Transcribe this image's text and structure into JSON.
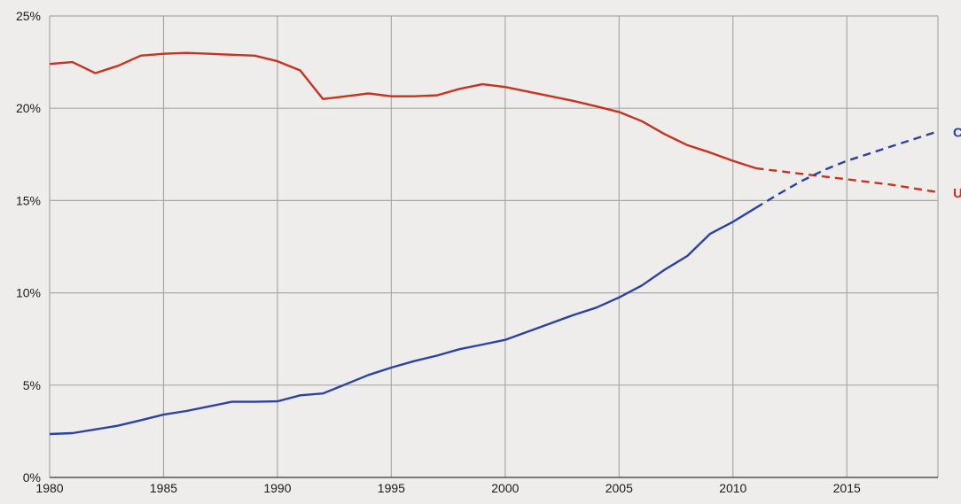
{
  "chart_data": {
    "type": "line",
    "title": "",
    "xlabel": "",
    "ylabel": "",
    "xlim": [
      1980,
      2019
    ],
    "ylim": [
      0,
      25
    ],
    "grid": true,
    "x_ticks": [
      1980,
      1985,
      1990,
      1995,
      2000,
      2005,
      2010,
      2015
    ],
    "y_ticks": [
      "0%",
      "5%",
      "10%",
      "15%",
      "20%",
      "25%"
    ],
    "series": [
      {
        "name": "U",
        "color": "#c8321e",
        "actual": [
          [
            1980,
            22.4
          ],
          [
            1981,
            22.5
          ],
          [
            1982,
            21.9
          ],
          [
            1983,
            22.3
          ],
          [
            1984,
            22.85
          ],
          [
            1985,
            22.95
          ],
          [
            1986,
            23.0
          ],
          [
            1987,
            22.95
          ],
          [
            1988,
            22.9
          ],
          [
            1989,
            22.85
          ],
          [
            1990,
            22.55
          ],
          [
            1991,
            22.05
          ],
          [
            1992,
            20.5
          ],
          [
            1993,
            20.65
          ],
          [
            1994,
            20.8
          ],
          [
            1995,
            20.65
          ],
          [
            1996,
            20.65
          ],
          [
            1997,
            20.7
          ],
          [
            1998,
            21.05
          ],
          [
            1999,
            21.3
          ],
          [
            2000,
            21.15
          ],
          [
            2001,
            20.9
          ],
          [
            2002,
            20.65
          ],
          [
            2003,
            20.4
          ],
          [
            2004,
            20.1
          ],
          [
            2005,
            19.8
          ],
          [
            2006,
            19.3
          ],
          [
            2007,
            18.6
          ],
          [
            2008,
            18.0
          ],
          [
            2009,
            17.6
          ],
          [
            2010,
            17.15
          ],
          [
            2011,
            16.75
          ]
        ],
        "projected": [
          [
            2011,
            16.75
          ],
          [
            2012,
            16.6
          ],
          [
            2013,
            16.45
          ],
          [
            2014,
            16.3
          ],
          [
            2015,
            16.15
          ],
          [
            2016,
            16.0
          ],
          [
            2017,
            15.85
          ],
          [
            2018,
            15.65
          ],
          [
            2019,
            15.45
          ]
        ]
      },
      {
        "name": "C",
        "color": "#2a43a2",
        "actual": [
          [
            1980,
            2.35
          ],
          [
            1981,
            2.4
          ],
          [
            1982,
            2.6
          ],
          [
            1983,
            2.8
          ],
          [
            1984,
            3.1
          ],
          [
            1985,
            3.4
          ],
          [
            1986,
            3.6
          ],
          [
            1987,
            3.85
          ],
          [
            1988,
            4.1
          ],
          [
            1989,
            4.1
          ],
          [
            1990,
            4.12
          ],
          [
            1991,
            4.45
          ],
          [
            1992,
            4.55
          ],
          [
            1993,
            5.05
          ],
          [
            1994,
            5.55
          ],
          [
            1995,
            5.95
          ],
          [
            1996,
            6.3
          ],
          [
            1997,
            6.6
          ],
          [
            1998,
            6.95
          ],
          [
            1999,
            7.2
          ],
          [
            2000,
            7.45
          ],
          [
            2001,
            7.9
          ],
          [
            2002,
            8.35
          ],
          [
            2003,
            8.8
          ],
          [
            2004,
            9.2
          ],
          [
            2005,
            9.75
          ],
          [
            2006,
            10.4
          ],
          [
            2007,
            11.25
          ],
          [
            2008,
            12.0
          ],
          [
            2009,
            13.2
          ],
          [
            2010,
            13.85
          ],
          [
            2011,
            14.6
          ]
        ],
        "projected": [
          [
            2011,
            14.6
          ],
          [
            2012,
            15.35
          ],
          [
            2013,
            16.05
          ],
          [
            2014,
            16.65
          ],
          [
            2015,
            17.15
          ],
          [
            2016,
            17.55
          ],
          [
            2017,
            17.95
          ],
          [
            2018,
            18.35
          ],
          [
            2019,
            18.75
          ]
        ]
      }
    ]
  }
}
